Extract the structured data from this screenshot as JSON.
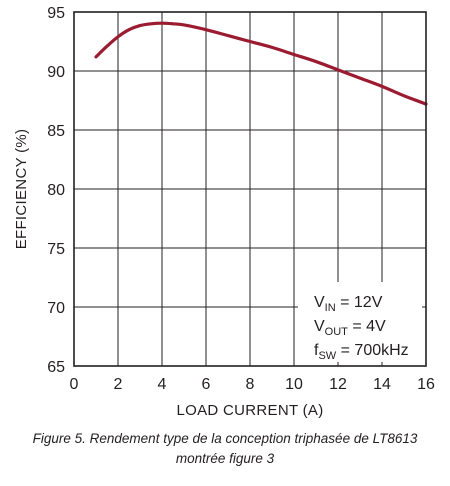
{
  "chart_data": {
    "type": "line",
    "xlabel": "LOAD CURRENT (A)",
    "ylabel": "EFFICIENCY (%)",
    "xlim": [
      0,
      16
    ],
    "ylim": [
      65,
      95
    ],
    "xticks": [
      "0",
      "2",
      "4",
      "6",
      "8",
      "10",
      "12",
      "14",
      "16"
    ],
    "yticks": [
      "65",
      "70",
      "75",
      "80",
      "85",
      "90",
      "95"
    ],
    "grid": true,
    "series": [
      {
        "color": "#9b1b30",
        "x": [
          1.0,
          1.5,
          2.0,
          2.5,
          3.0,
          3.5,
          4.0,
          4.5,
          5.0,
          6.0,
          7.0,
          8.0,
          9.0,
          10.0,
          11.0,
          12.0,
          13.0,
          14.0,
          15.0,
          16.0
        ],
        "y": [
          91.2,
          92.1,
          92.9,
          93.5,
          93.85,
          94.0,
          94.05,
          94.0,
          93.9,
          93.5,
          93.0,
          92.5,
          92.0,
          91.4,
          90.8,
          90.1,
          89.4,
          88.7,
          87.9,
          87.2
        ]
      }
    ],
    "annotation": {
      "vin_main": "V",
      "vin_sub": "IN",
      "vin_val": " = 12V",
      "vout_main": "V",
      "vout_sub": "OUT",
      "vout_val": " = 4V",
      "fsw_main": "f",
      "fsw_sub": "SW",
      "fsw_val": " = 700kHz"
    }
  },
  "caption": {
    "line1": "Figure 5. Rendement type de la conception triphasée de LT8613",
    "line2": "montrée figure 3"
  }
}
